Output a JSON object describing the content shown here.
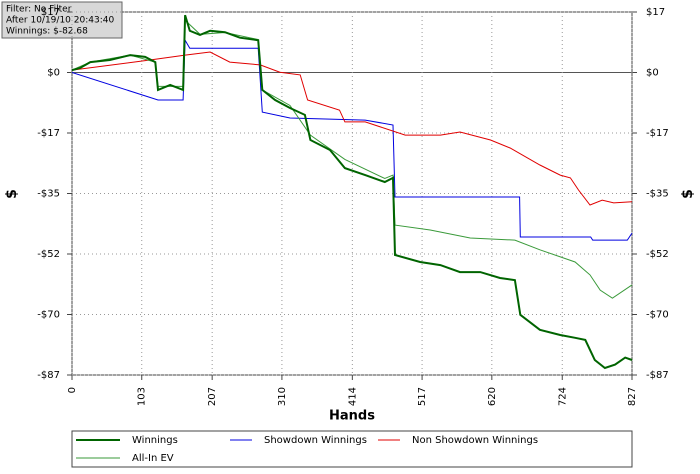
{
  "chart_data": {
    "type": "line",
    "info_box": [
      "Filter: No Filter",
      "After 10/19/10 20:43:40",
      "Winnings: $-82.68"
    ],
    "x_label": "Hands",
    "y_label": "$",
    "y2_label": "$",
    "xlim": [
      0,
      827
    ],
    "xticks": [
      0,
      103,
      207,
      310,
      414,
      517,
      620,
      724,
      827
    ],
    "ylim": [
      -87,
      17.4
    ],
    "yticks": [
      {
        "value": 17.4,
        "label": "$17"
      },
      {
        "value": 0,
        "label": "$0"
      },
      {
        "value": -17.4,
        "label": "-$17"
      },
      {
        "value": -34.8,
        "label": "-$35"
      },
      {
        "value": -52.2,
        "label": "-$52"
      },
      {
        "value": -69.6,
        "label": "-$70"
      },
      {
        "value": -87,
        "label": "-$87"
      }
    ],
    "grid": true,
    "legend": "bottom",
    "series": [
      {
        "name": "Winnings",
        "color": "#006400",
        "x": [
          0,
          12,
          27,
          56,
          86,
          108,
          123,
          127,
          145,
          164,
          167,
          174,
          189,
          204,
          226,
          248,
          275,
          281,
          300,
          322,
          344,
          352,
          381,
          403,
          433,
          462,
          474,
          477,
          514,
          544,
          573,
          603,
          632,
          654,
          662,
          691,
          721,
          743,
          758,
          772,
          787,
          802,
          817,
          827
        ],
        "values": [
          0.7,
          1.3,
          3,
          3.6,
          5,
          4.5,
          3,
          -5,
          -3.6,
          -5,
          16.5,
          12,
          10.8,
          12,
          11.6,
          10,
          9.3,
          -5,
          -7.9,
          -10.2,
          -12.2,
          -19.4,
          -22.3,
          -27.5,
          -29.5,
          -31.5,
          -30.3,
          -52.5,
          -54.5,
          -55.4,
          -57.4,
          -57.4,
          -59.1,
          -59.7,
          -69.7,
          -74,
          -75.5,
          -76.3,
          -76.9,
          -82.7,
          -85,
          -84,
          -82,
          -82.68
        ]
      },
      {
        "name": "Showdown Winnings",
        "color": "#0000e0",
        "x": [
          0,
          127,
          164,
          167,
          174,
          275,
          281,
          322,
          433,
          474,
          477,
          661,
          662,
          766,
          769,
          820,
          827
        ],
        "values": [
          0,
          -7.9,
          -7.9,
          9.3,
          7,
          7,
          -11.4,
          -13.1,
          -13.7,
          -15.1,
          -35.8,
          -35.8,
          -47.3,
          -47.3,
          -48.2,
          -48.2,
          -46.2
        ]
      },
      {
        "name": "Non Showdown Winnings",
        "color": "#e00000",
        "x": [
          0,
          115,
          167,
          204,
          233,
          278,
          307,
          337,
          348,
          395,
          403,
          433,
          492,
          544,
          573,
          618,
          647,
          691,
          721,
          736,
          748,
          765,
          783,
          800,
          827
        ],
        "values": [
          0.7,
          3.6,
          5,
          5.9,
          3,
          2.2,
          0.1,
          -0.7,
          -7.9,
          -10.8,
          -14.2,
          -14.2,
          -18,
          -18,
          -17.1,
          -19.4,
          -21.7,
          -26.6,
          -29.5,
          -30.3,
          -33.8,
          -38.1,
          -36.7,
          -37.5,
          -37.2
        ]
      },
      {
        "name": "All-In EV",
        "color": "#3a9a3a",
        "x": [
          0,
          27,
          86,
          123,
          127,
          164,
          167,
          189,
          226,
          275,
          281,
          322,
          352,
          403,
          462,
          474,
          477,
          529,
          588,
          654,
          691,
          743,
          765,
          780,
          798,
          827
        ],
        "values": [
          0.7,
          3,
          5,
          3,
          -4,
          -4,
          15,
          11,
          11.5,
          9.5,
          -5,
          -9.5,
          -18,
          -25,
          -30.5,
          -29.5,
          -43.9,
          -45.3,
          -47.6,
          -48.2,
          -51,
          -54.5,
          -58.2,
          -62.6,
          -64.9,
          -61.1
        ]
      }
    ]
  }
}
